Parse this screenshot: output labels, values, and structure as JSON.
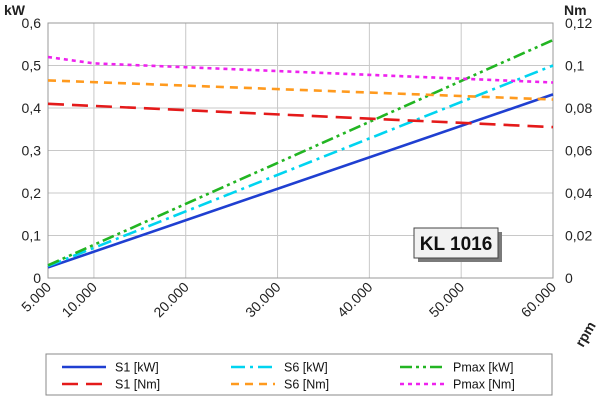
{
  "chart_data": {
    "type": "line",
    "badge": "KL 1016",
    "xlabel": "rpm",
    "ylabel_left": "kW",
    "ylabel_right": "Nm",
    "xlim": [
      5000,
      60000
    ],
    "ylim_left": [
      0,
      0.6
    ],
    "ylim_right": [
      0,
      0.12
    ],
    "x_tick_values": [
      5000,
      10000,
      20000,
      30000,
      40000,
      50000,
      60000
    ],
    "x_tick_labels": [
      "5.000",
      "10.000",
      "20.000",
      "30.000",
      "40.000",
      "50.000",
      "60.000"
    ],
    "y_left_tick_values": [
      0,
      0.1,
      0.2,
      0.3,
      0.4,
      0.5,
      0.6
    ],
    "y_left_tick_labels": [
      "0",
      "0,1",
      "0,2",
      "0,3",
      "0,4",
      "0,5",
      "0,6"
    ],
    "y_right_tick_values": [
      0,
      0.02,
      0.04,
      0.06,
      0.08,
      0.1,
      0.12
    ],
    "y_right_tick_labels": [
      "0",
      "0,02",
      "0,04",
      "0,06",
      "0,08",
      "0,1",
      "0,12"
    ],
    "grid": true,
    "legend_position": "bottom",
    "series": [
      {
        "name": "S1 [kW]",
        "axis": "left",
        "color": "#1f3fd1",
        "dash": "solid",
        "x": [
          5000,
          60000
        ],
        "y": [
          0.025,
          0.432
        ]
      },
      {
        "name": "S6 [kW]",
        "axis": "left",
        "color": "#00d4f0",
        "dash": "dashdot",
        "x": [
          5000,
          60000
        ],
        "y": [
          0.028,
          0.5
        ]
      },
      {
        "name": "Pmax [kW]",
        "axis": "left",
        "color": "#22b522",
        "dash": "dashdotdot",
        "x": [
          5000,
          60000
        ],
        "y": [
          0.03,
          0.56
        ]
      },
      {
        "name": "S1 [Nm]",
        "axis": "right",
        "color": "#e41a1a",
        "dash": "longdash",
        "x": [
          5000,
          60000
        ],
        "y": [
          0.082,
          0.071
        ]
      },
      {
        "name": "S6 [Nm]",
        "axis": "right",
        "color": "#ff9a1e",
        "dash": "dash",
        "x": [
          5000,
          60000
        ],
        "y": [
          0.093,
          0.084
        ]
      },
      {
        "name": "Pmax [Nm]",
        "axis": "right",
        "color": "#ee22ee",
        "dash": "dot",
        "x": [
          5000,
          10000,
          60000
        ],
        "y": [
          0.104,
          0.101,
          0.092
        ]
      }
    ]
  }
}
